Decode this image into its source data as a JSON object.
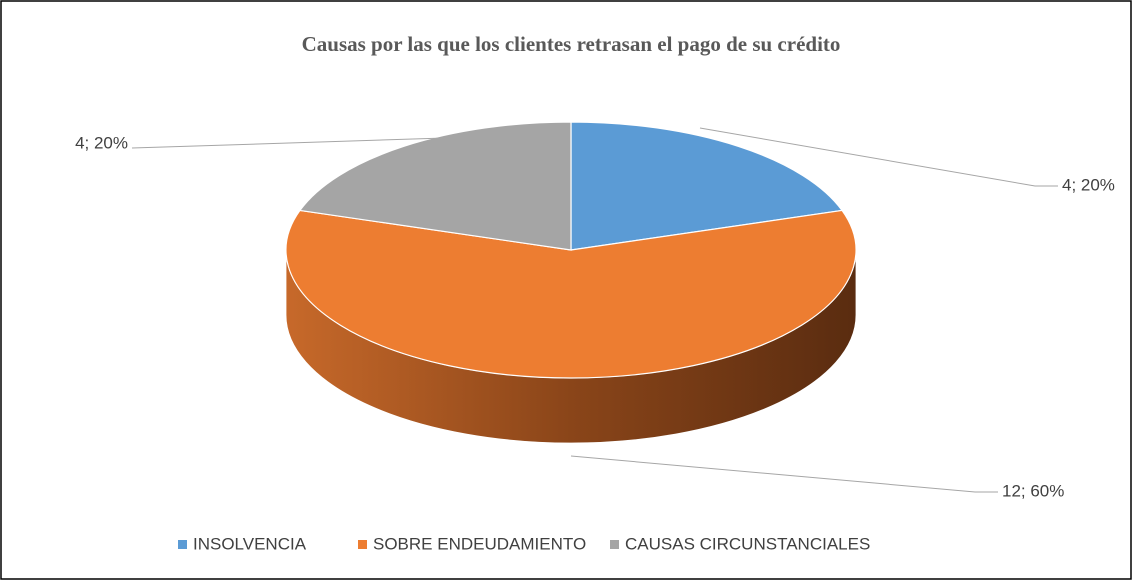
{
  "chart_data": {
    "type": "pie",
    "title": "Causas por las que los clientes retrasan el pago de su crédito",
    "categories": [
      "INSOLVENCIA",
      "SOBRE ENDEUDAMIENTO",
      "CAUSAS CIRCUNSTANCIALES"
    ],
    "values": [
      4,
      12,
      4
    ],
    "value_labels": [
      "4; 20%",
      "12; 60%",
      "4; 20%"
    ],
    "colors": [
      "#5b9bd5",
      "#ed7d31",
      "#a5a5a5"
    ],
    "legend": "bottom"
  }
}
